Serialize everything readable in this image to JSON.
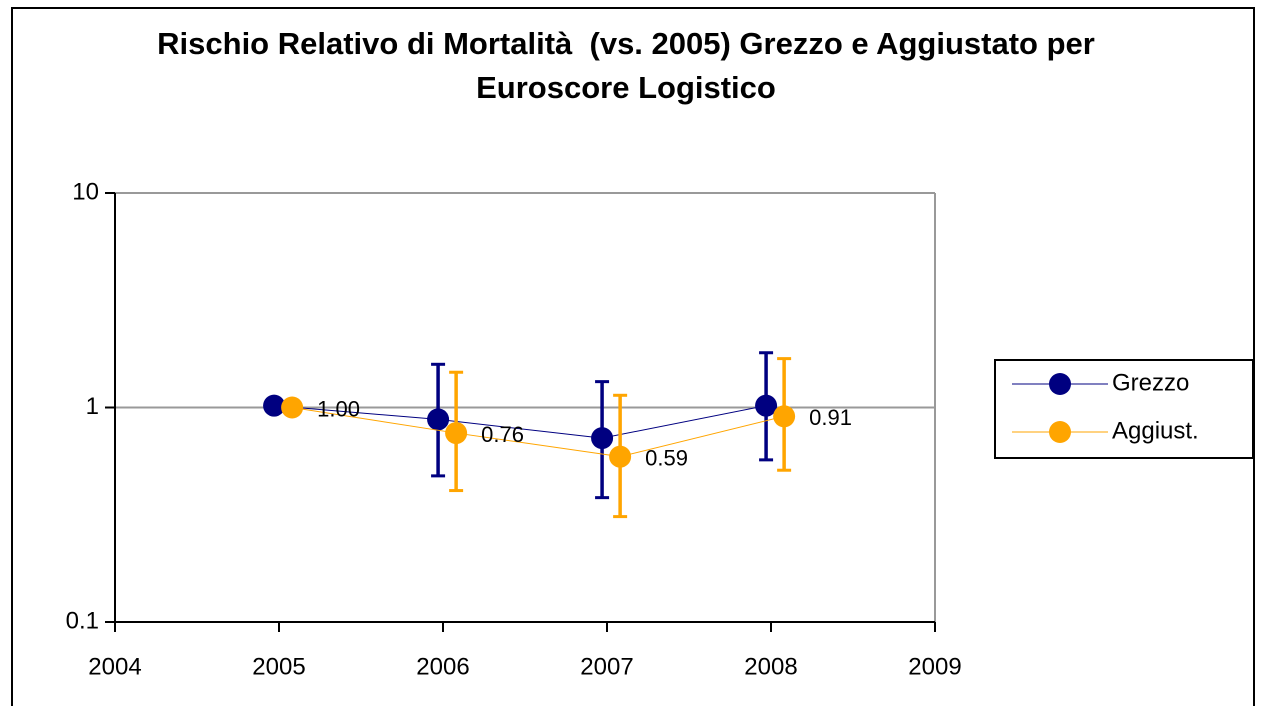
{
  "chart_data": {
    "type": "line",
    "title": "Rischio Relativo di Mortalità  (vs. 2005) Grezzo e Aggiustato per Euroscore Logistico",
    "xlim": [
      2004,
      2009
    ],
    "xticks": [
      2004,
      2005,
      2006,
      2007,
      2008,
      2009
    ],
    "ylim": [
      0.1,
      10
    ],
    "yticks": [
      0.1,
      1,
      10
    ],
    "log_y": true,
    "grid": true,
    "legend": "right",
    "series": [
      {
        "name": "Grezzo",
        "color": "#000080",
        "x": [
          2004.97,
          2005.97,
          2006.97,
          2007.97
        ],
        "values": [
          1.02,
          0.88,
          0.72,
          1.02
        ],
        "lower": [
          null,
          0.48,
          0.38,
          0.57
        ],
        "upper": [
          null,
          1.59,
          1.32,
          1.8
        ]
      },
      {
        "name": "Aggiust.",
        "color": "#FFA500",
        "x": [
          2005.08,
          2006.08,
          2007.08,
          2008.08
        ],
        "values": [
          1.0,
          0.76,
          0.59,
          0.91
        ],
        "value_labels": [
          "1.00",
          "0.76",
          "0.59",
          "0.91"
        ],
        "lower": [
          null,
          0.41,
          0.31,
          0.51
        ],
        "upper": [
          null,
          1.46,
          1.14,
          1.69
        ]
      }
    ]
  }
}
